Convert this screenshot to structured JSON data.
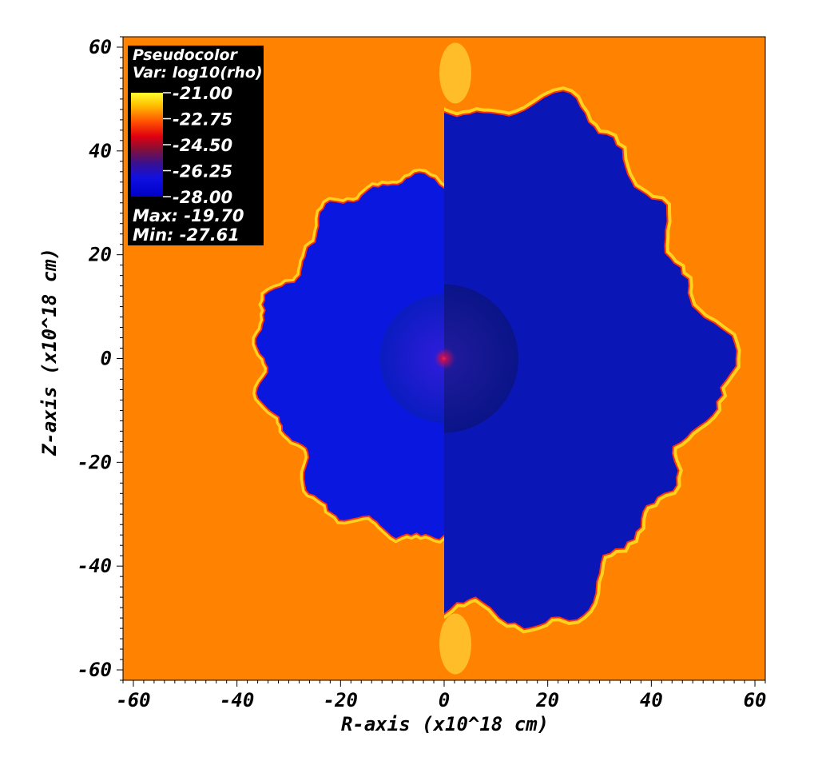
{
  "chart_data": {
    "type": "heatmap",
    "variable": "log10(rho)",
    "xlabel": "R-axis (x10^18 cm)",
    "ylabel": "Z-axis (x10^18 cm)",
    "xlim": [
      -62,
      62
    ],
    "ylim": [
      -62,
      62
    ],
    "x_ticks": [
      -60,
      -40,
      -20,
      0,
      20,
      40,
      60
    ],
    "y_ticks": [
      60,
      40,
      20,
      0,
      -20,
      -40,
      -60
    ],
    "x_tick_labels": [
      "-60",
      "-40",
      "-20",
      "0",
      "20",
      "40",
      "60"
    ],
    "y_tick_labels": [
      "60",
      "40",
      "20",
      "0",
      "-20",
      "-40",
      "-60"
    ],
    "legend": {
      "title": "Pseudocolor",
      "var_label": "Var: log10(rho)",
      "levels": [
        "-21.00",
        "-22.75",
        "-24.50",
        "-26.25",
        "-28.00"
      ],
      "max_label": "Max: -19.70",
      "min_label": "Min: -27.61",
      "placement": "top-left"
    },
    "colors": {
      "ambient": "#ff8200",
      "bubble_left": "#0a18df",
      "bubble_right": "#0a16b6",
      "edge": "#ffd21e",
      "core": "#dd0018"
    },
    "features": {
      "left_bubble_radius": 35,
      "right_bubble_radius": 57,
      "left_inner_radius": 10.5,
      "right_inner_radius": 14.3
    }
  }
}
